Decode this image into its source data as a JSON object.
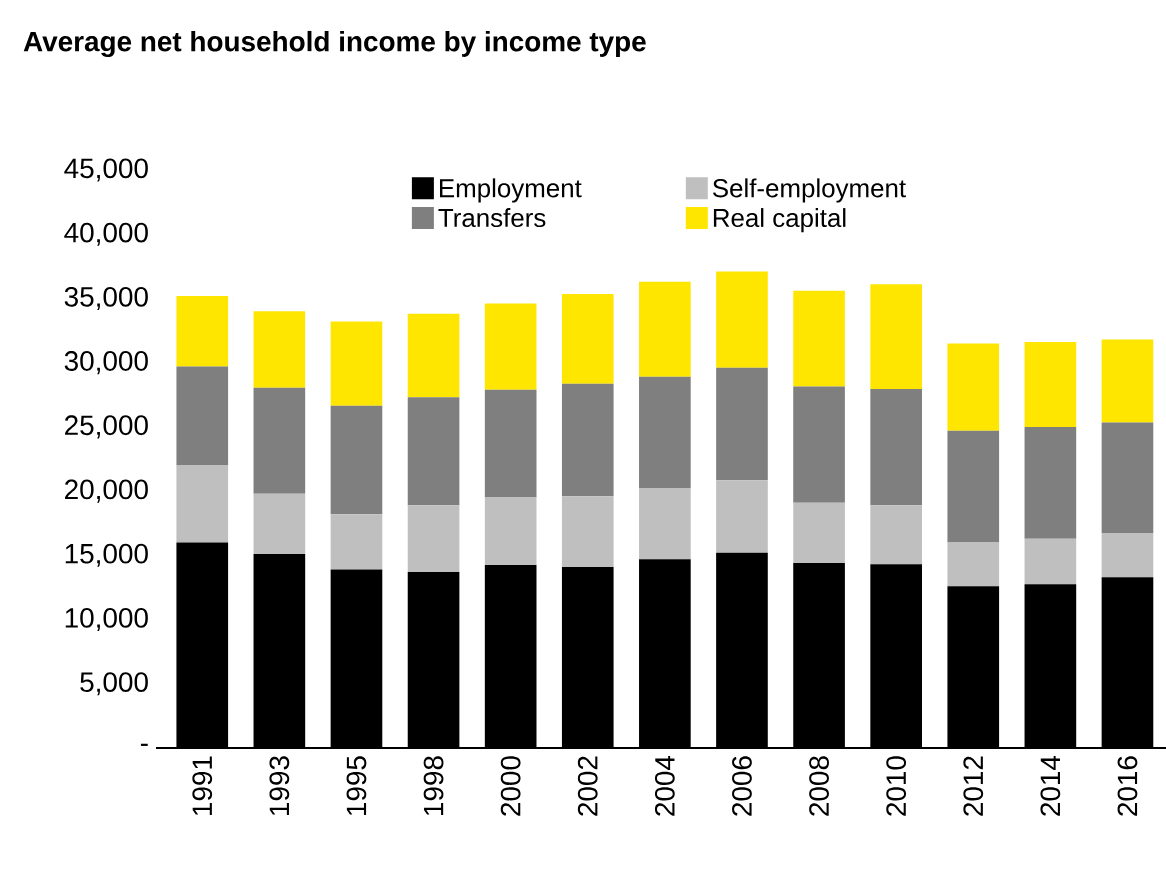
{
  "chart_data": {
    "type": "bar",
    "title": "Average net household income by income type",
    "stacked": true,
    "legend": "top",
    "grid": false,
    "categories": [
      "1991",
      "1993",
      "1995",
      "1998",
      "2000",
      "2002",
      "2004",
      "2006",
      "2008",
      "2010",
      "2012",
      "2014",
      "2016"
    ],
    "series": [
      {
        "name": "Employment",
        "color": "#000000",
        "values": [
          16000,
          15100,
          13900,
          13700,
          14250,
          14100,
          14700,
          15200,
          14400,
          14300,
          12600,
          12750,
          13300
        ]
      },
      {
        "name": "Self-employment",
        "color": "#bfbfbf",
        "values": [
          6000,
          4700,
          4300,
          5200,
          5250,
          5500,
          5500,
          5650,
          4700,
          4600,
          3400,
          3550,
          3400
        ]
      },
      {
        "name": "Transfers",
        "color": "#7f7f7f",
        "values": [
          7700,
          8250,
          8450,
          8400,
          8400,
          8750,
          8700,
          8750,
          9050,
          9050,
          8700,
          8700,
          8650
        ]
      },
      {
        "name": "Real capital",
        "color": "#ffe600",
        "values": [
          5500,
          5950,
          6550,
          6500,
          6700,
          7000,
          7400,
          7500,
          7450,
          8150,
          6800,
          6600,
          6450
        ]
      }
    ],
    "ylim": [
      0,
      45000
    ],
    "yticks": [
      {
        "value": 0,
        "label": "-"
      },
      {
        "value": 5000,
        "label": "5,000"
      },
      {
        "value": 10000,
        "label": "10,000"
      },
      {
        "value": 15000,
        "label": "15,000"
      },
      {
        "value": 20000,
        "label": "20,000"
      },
      {
        "value": 25000,
        "label": "25,000"
      },
      {
        "value": 30000,
        "label": "30,000"
      },
      {
        "value": 35000,
        "label": "35,000"
      },
      {
        "value": 40000,
        "label": "40,000"
      },
      {
        "value": 45000,
        "label": "45,000"
      }
    ]
  }
}
